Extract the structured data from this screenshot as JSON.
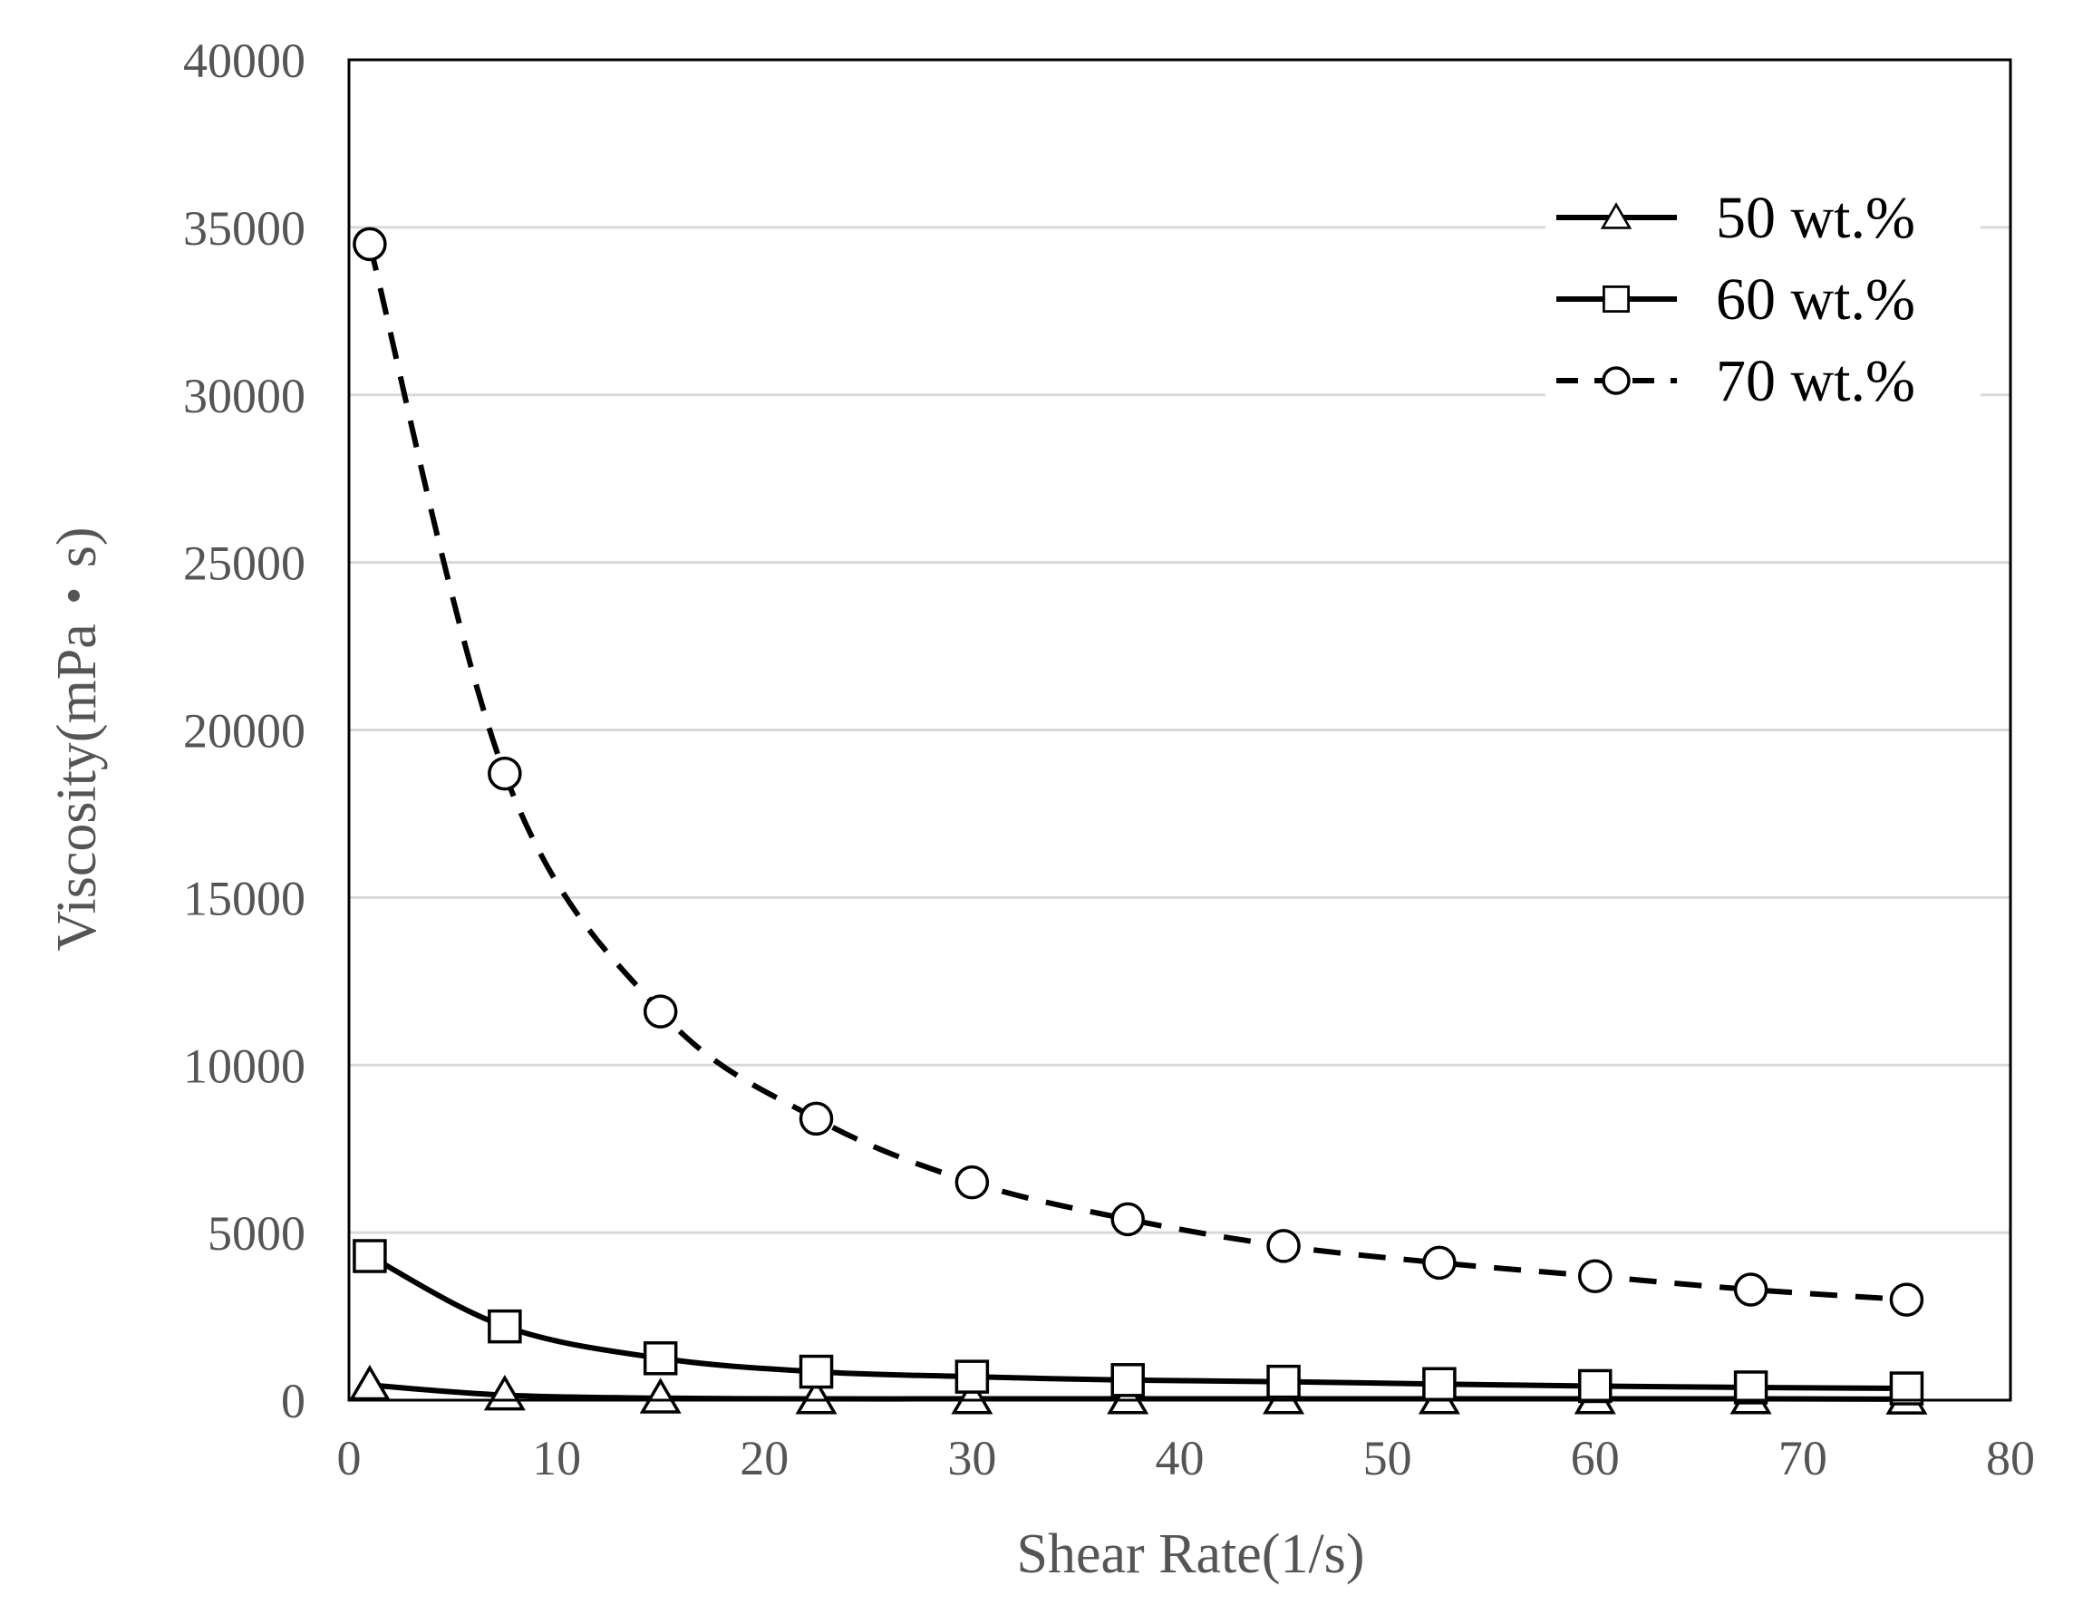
{
  "chart_data": {
    "type": "line",
    "title": "",
    "xlabel": "Shear Rate(1/s)",
    "ylabel": "Viscosity(mPa・s)",
    "xlim": [
      0,
      80
    ],
    "ylim": [
      0,
      40000
    ],
    "xticks": [
      0,
      10,
      20,
      30,
      40,
      50,
      60,
      70,
      80
    ],
    "yticks": [
      0,
      5000,
      10000,
      15000,
      20000,
      25000,
      30000,
      35000,
      40000
    ],
    "x_tick_labels": [
      "0",
      "10",
      "20",
      "30",
      "40",
      "50",
      "60",
      "70",
      "80"
    ],
    "y_tick_labels": [
      "0",
      "5000",
      "10000",
      "15000",
      "20000",
      "25000",
      "30000",
      "35000",
      "40000"
    ],
    "grid": "horizontal",
    "legend_position": "top-right",
    "x": [
      1,
      7.5,
      15,
      22.5,
      30,
      37.5,
      45,
      52.5,
      60,
      67.5,
      75
    ],
    "series": [
      {
        "name": "50 wt.%",
        "marker": "triangle",
        "line": "solid",
        "color": "#000000",
        "values": [
          450,
          150,
          60,
          40,
          40,
          40,
          40,
          40,
          40,
          40,
          30
        ]
      },
      {
        "name": "60 wt.%",
        "marker": "square",
        "line": "solid",
        "color": "#000000",
        "values": [
          4300,
          2200,
          1250,
          850,
          700,
          600,
          550,
          480,
          420,
          380,
          350
        ]
      },
      {
        "name": "70 wt.%",
        "marker": "circle",
        "line": "dashed",
        "color": "#000000",
        "values": [
          34500,
          18700,
          11600,
          8400,
          6500,
          5400,
          4600,
          4100,
          3700,
          3300,
          3000
        ]
      }
    ]
  }
}
